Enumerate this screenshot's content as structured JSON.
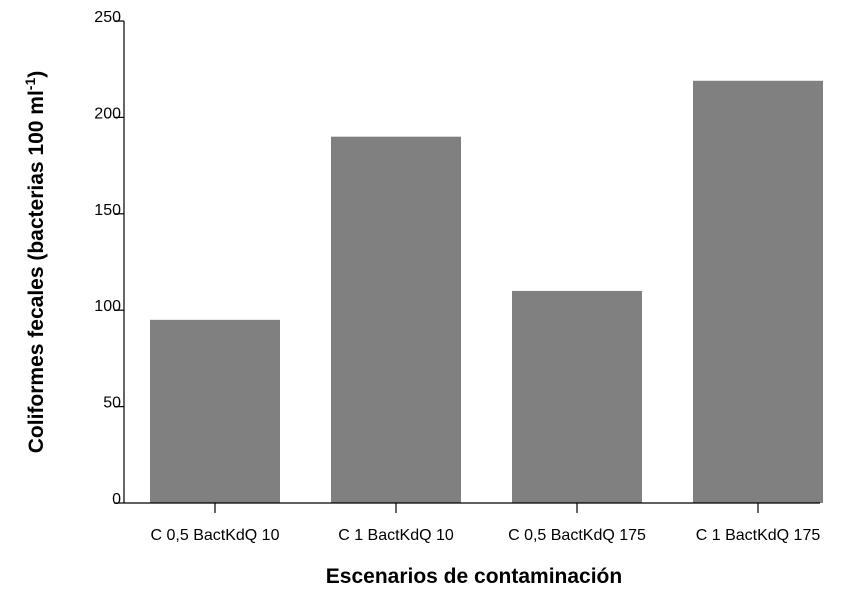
{
  "chart_data": {
    "type": "bar",
    "categories": [
      "C 0,5 BactKdQ 10",
      "C 1 BactKdQ 10",
      "C 0,5 BactKdQ 175",
      "C 1 BactKdQ 175"
    ],
    "values": [
      95,
      190,
      110,
      219
    ],
    "xlabel": "Escenarios de contaminación",
    "ylabel_main": "Coliformes fecales (bacterias 100 ml",
    "ylabel_sup": "-1",
    "ylabel_end": ")",
    "ylim": [
      0,
      250
    ],
    "yticks": [
      0,
      50,
      100,
      150,
      200,
      250
    ],
    "bar_color": "#808080",
    "grid": false,
    "legend": "none"
  }
}
